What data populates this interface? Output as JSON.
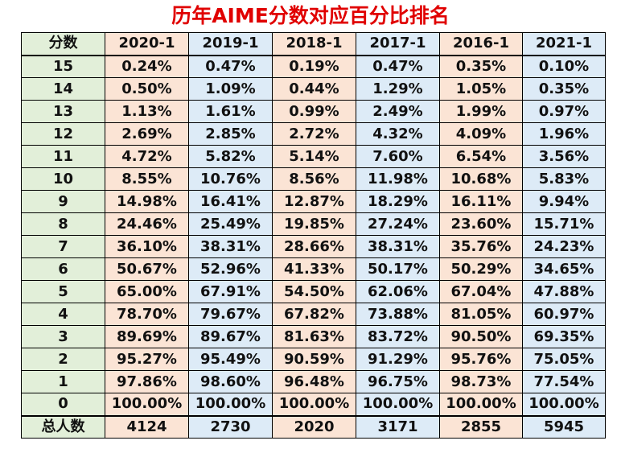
{
  "title": "历年AIME分数对应百分比排名",
  "table": {
    "header": [
      "分数",
      "2020-1",
      "2019-1",
      "2018-1",
      "2017-1",
      "2016-1",
      "2021-1"
    ],
    "rows": [
      {
        "score": "15",
        "values": [
          "0.24%",
          "0.47%",
          "0.19%",
          "0.47%",
          "0.35%",
          "0.10%"
        ]
      },
      {
        "score": "14",
        "values": [
          "0.50%",
          "1.09%",
          "0.44%",
          "1.29%",
          "1.05%",
          "0.35%"
        ]
      },
      {
        "score": "13",
        "values": [
          "1.13%",
          "1.61%",
          "0.99%",
          "2.49%",
          "1.99%",
          "0.97%"
        ]
      },
      {
        "score": "12",
        "values": [
          "2.69%",
          "2.85%",
          "2.72%",
          "4.32%",
          "4.09%",
          "1.96%"
        ]
      },
      {
        "score": "11",
        "values": [
          "4.72%",
          "5.82%",
          "5.14%",
          "7.60%",
          "6.54%",
          "3.56%"
        ]
      },
      {
        "score": "10",
        "values": [
          "8.55%",
          "10.76%",
          "8.56%",
          "11.98%",
          "10.68%",
          "5.83%"
        ]
      },
      {
        "score": "9",
        "values": [
          "14.98%",
          "16.41%",
          "12.87%",
          "18.29%",
          "16.11%",
          "9.94%"
        ]
      },
      {
        "score": "8",
        "values": [
          "24.46%",
          "25.49%",
          "19.85%",
          "27.24%",
          "23.60%",
          "15.71%"
        ]
      },
      {
        "score": "7",
        "values": [
          "36.10%",
          "38.31%",
          "28.66%",
          "38.31%",
          "35.76%",
          "24.23%"
        ]
      },
      {
        "score": "6",
        "values": [
          "50.67%",
          "52.96%",
          "41.33%",
          "50.17%",
          "50.29%",
          "34.65%"
        ]
      },
      {
        "score": "5",
        "values": [
          "65.00%",
          "67.91%",
          "54.50%",
          "62.06%",
          "67.04%",
          "47.88%"
        ]
      },
      {
        "score": "4",
        "values": [
          "78.70%",
          "79.67%",
          "67.82%",
          "73.88%",
          "81.05%",
          "60.97%"
        ]
      },
      {
        "score": "3",
        "values": [
          "89.69%",
          "89.67%",
          "81.63%",
          "83.72%",
          "90.50%",
          "69.35%"
        ]
      },
      {
        "score": "2",
        "values": [
          "95.27%",
          "95.49%",
          "90.59%",
          "91.29%",
          "95.76%",
          "75.05%"
        ]
      },
      {
        "score": "1",
        "values": [
          "97.86%",
          "98.60%",
          "96.48%",
          "96.75%",
          "98.73%",
          "77.54%"
        ]
      },
      {
        "score": "0",
        "values": [
          "100.00%",
          "100.00%",
          "100.00%",
          "100.00%",
          "100.00%",
          "100.00%"
        ]
      }
    ],
    "total": {
      "label": "总人数",
      "values": [
        "4124",
        "2730",
        "2020",
        "3171",
        "2855",
        "5945"
      ]
    }
  },
  "colors": {
    "title": "#e00000",
    "score_column": "#e2efd9",
    "peach_column": "#fbe4d5",
    "blue_column": "#ddebf7"
  }
}
